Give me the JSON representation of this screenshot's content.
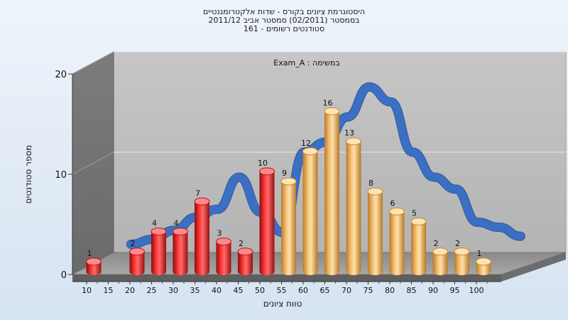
{
  "title_lines": [
    "היסטוגרמת ציונים בקורס - שדות אלקטרומגנטיים",
    "בסמסטר (02/2011) סמסטר אביב 2011/12",
    "סטודנטים רשומים - 161"
  ],
  "colors": {
    "fail_bar": "#e32020",
    "pass_bar": "#f0b560",
    "curve": "#3a6fc4"
  },
  "chart_data": {
    "type": "bar",
    "annotation": "במשימה : Exam_A",
    "xlabel": "טווח ציונים",
    "ylabel": "מספר סטודנטים",
    "ylim": [
      0,
      20
    ],
    "y_ticks": [
      "0",
      "10",
      "20"
    ],
    "x_ticks": [
      "10",
      "15",
      "20",
      "25",
      "30",
      "35",
      "40",
      "45",
      "50",
      "55",
      "60",
      "65",
      "70",
      "75",
      "80",
      "85",
      "90",
      "95",
      "100"
    ],
    "bars": [
      {
        "x": 10,
        "value": 1,
        "group": "fail"
      },
      {
        "x": 20,
        "value": 2,
        "group": "fail"
      },
      {
        "x": 25,
        "value": 4,
        "group": "fail"
      },
      {
        "x": 30,
        "value": 4,
        "group": "fail"
      },
      {
        "x": 35,
        "value": 7,
        "group": "fail"
      },
      {
        "x": 40,
        "value": 3,
        "group": "fail"
      },
      {
        "x": 45,
        "value": 2,
        "group": "fail"
      },
      {
        "x": 50,
        "value": 10,
        "group": "fail"
      },
      {
        "x": 55,
        "value": 9,
        "group": "pass"
      },
      {
        "x": 60,
        "value": 12,
        "group": "pass"
      },
      {
        "x": 65,
        "value": 16,
        "group": "pass"
      },
      {
        "x": 70,
        "value": 13,
        "group": "pass"
      },
      {
        "x": 75,
        "value": 8,
        "group": "pass"
      },
      {
        "x": 80,
        "value": 6,
        "group": "pass"
      },
      {
        "x": 85,
        "value": 5,
        "group": "pass"
      },
      {
        "x": 90,
        "value": 2,
        "group": "pass"
      },
      {
        "x": 95,
        "value": 2,
        "group": "pass"
      },
      {
        "x": 100,
        "value": 1,
        "group": "pass"
      }
    ],
    "curve": [
      {
        "x": 15,
        "y": 1.8
      },
      {
        "x": 20,
        "y": 2.3
      },
      {
        "x": 25,
        "y": 3.2
      },
      {
        "x": 30,
        "y": 4.5
      },
      {
        "x": 35,
        "y": 5.3
      },
      {
        "x": 40,
        "y": 8.5
      },
      {
        "x": 45,
        "y": 5.0
      },
      {
        "x": 50,
        "y": 3.0
      },
      {
        "x": 55,
        "y": 11.0
      },
      {
        "x": 60,
        "y": 12.0
      },
      {
        "x": 65,
        "y": 14.5
      },
      {
        "x": 70,
        "y": 17.5
      },
      {
        "x": 75,
        "y": 16.0
      },
      {
        "x": 80,
        "y": 11.0
      },
      {
        "x": 85,
        "y": 8.5
      },
      {
        "x": 90,
        "y": 7.3
      },
      {
        "x": 95,
        "y": 4.0
      },
      {
        "x": 100,
        "y": 3.5
      },
      {
        "x": 105,
        "y": 2.6
      }
    ]
  }
}
